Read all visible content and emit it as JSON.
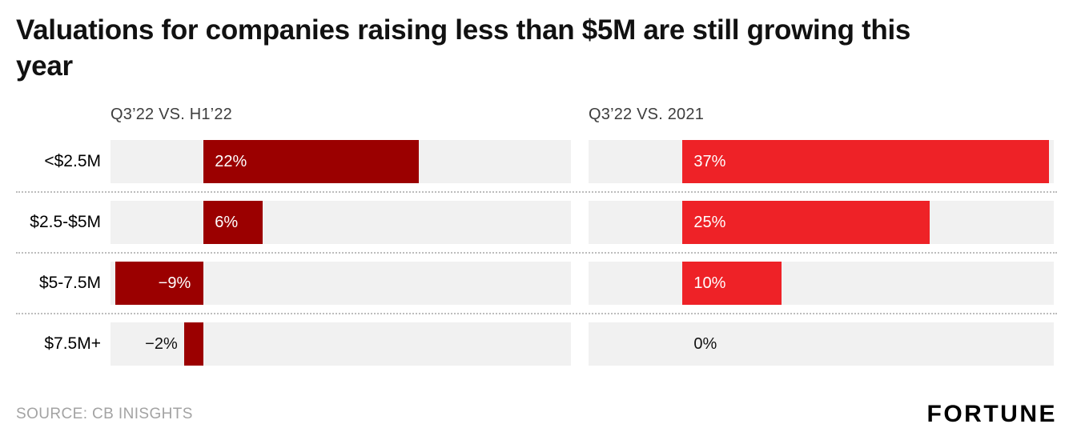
{
  "title": "Valuations for companies raising less than $5M are still growing this year",
  "source_note": "SOURCE: CB INISGHTS",
  "brand": "FORTUNE",
  "colors": {
    "track_bg": "#f1f1f1",
    "dark_red": "#9b0000",
    "bright_red": "#ee2227",
    "title_text": "#111111",
    "header_text": "#3d3d3d",
    "source_text": "#a3a3a3"
  },
  "chart_data": {
    "type": "bar",
    "orientation": "horizontal",
    "title": "Valuations for companies raising less than $5M are still growing this year",
    "categories": [
      "<$2.5M",
      "$2.5-$5M",
      "$5-7.5M",
      "$7.5M+"
    ],
    "series": [
      {
        "name": "Q3’22 VS. H1’22",
        "values": [
          22,
          6,
          -9,
          -2
        ],
        "color": "#9b0000"
      },
      {
        "name": "Q3’22 VS. 2021",
        "values": [
          37,
          25,
          10,
          0
        ],
        "color": "#ee2227"
      }
    ],
    "value_labels": [
      [
        "22%",
        "6%",
        "−9%",
        "−2%"
      ],
      [
        "37%",
        "25%",
        "10%",
        "0%"
      ]
    ],
    "unit": "%",
    "xlim": [
      -9.5,
      37.5
    ],
    "grid": false,
    "legend": "panel headers above each bar column"
  }
}
